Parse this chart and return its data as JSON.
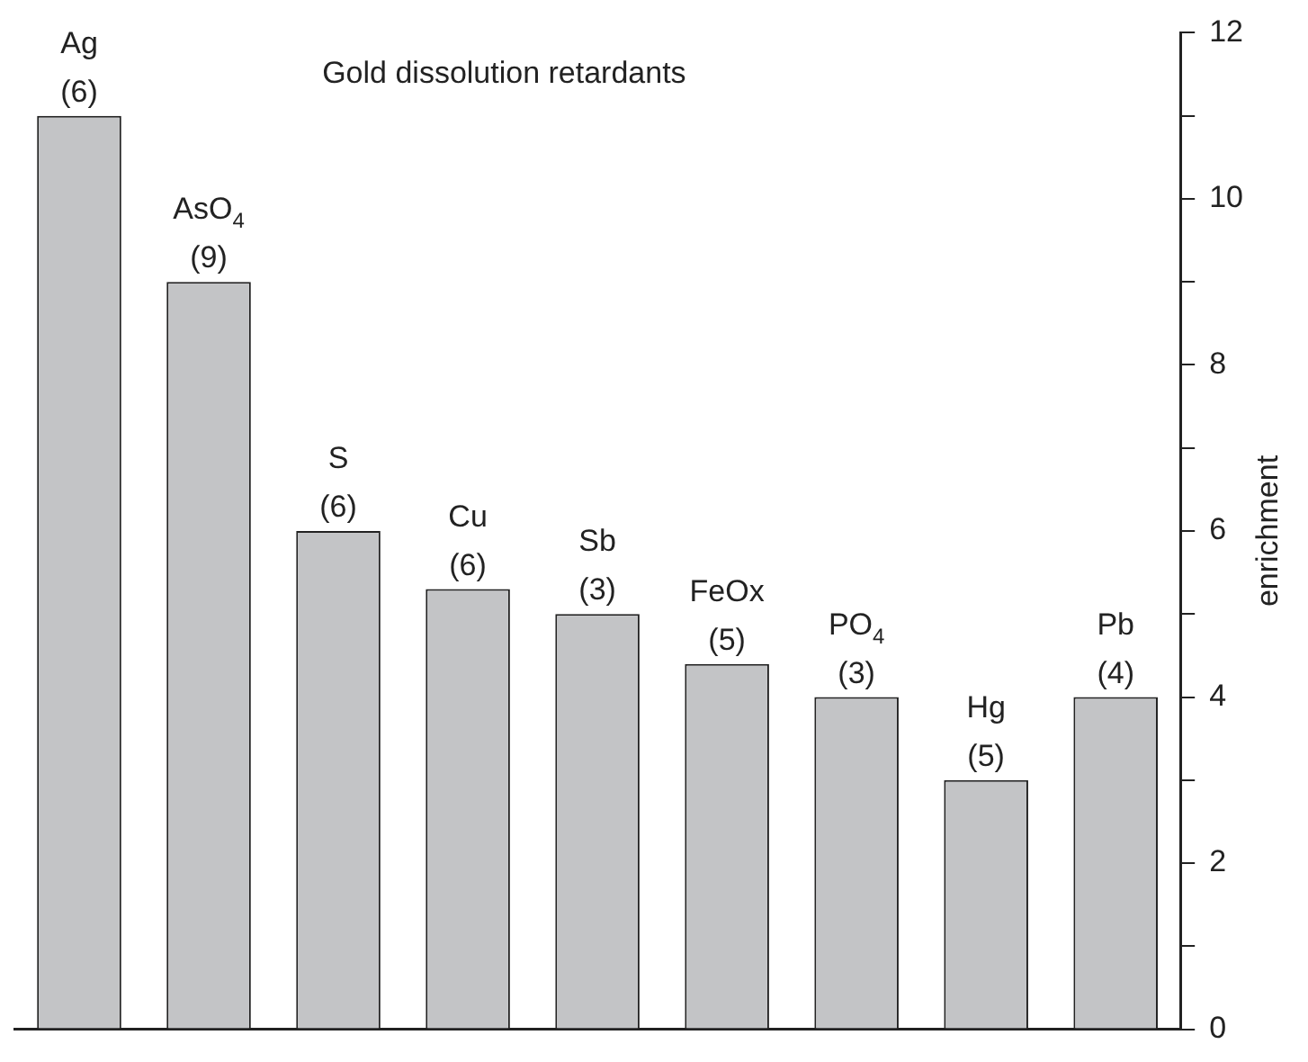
{
  "chart_data": {
    "type": "bar",
    "title": "Gold dissolution retardants",
    "ylabel": "enrichment",
    "categories": [
      "Ag",
      "AsO$_{4}$",
      "S",
      "Cu",
      "Sb",
      "FeOx",
      "PO$_{4}$",
      "Hg",
      "Pb"
    ],
    "values": [
      11,
      9,
      6,
      5.3,
      5,
      4.4,
      4,
      3,
      4
    ],
    "annotations": [
      {
        "text": "(6)",
        "x": "Ag",
        "y": 11
      },
      {
        "text": "(9)",
        "x": "AsO$_{4}$",
        "y": 9
      },
      {
        "text": "(6)",
        "x": "S",
        "y": 6
      },
      {
        "text": "(6)",
        "x": "Cu",
        "y": 5.3
      },
      {
        "text": "(3)",
        "x": "Sb",
        "y": 5
      },
      {
        "text": "(5)",
        "x": "FeOx",
        "y": 4.4
      },
      {
        "text": "(3)",
        "x": "PO$_{4}$",
        "y": 4
      },
      {
        "text": "(5)",
        "x": "Hg",
        "y": 3
      },
      {
        "text": "(4)",
        "x": "Pb",
        "y": 4
      }
    ],
    "color": "#c3c4c6",
    "ylim": [
      0,
      12
    ],
    "yticks": [
      0,
      {
        "value": 1,
        "label": null
      },
      2,
      {
        "value": 3,
        "label": null
      },
      4,
      {
        "value": 5,
        "label": null
      },
      6,
      {
        "value": 7,
        "label": null
      },
      8,
      {
        "value": 9,
        "label": null
      },
      10,
      {
        "value": 11,
        "label": null
      },
      12
    ],
    "grid": false,
    "legend": false,
    "tick_labels": "y"
  }
}
